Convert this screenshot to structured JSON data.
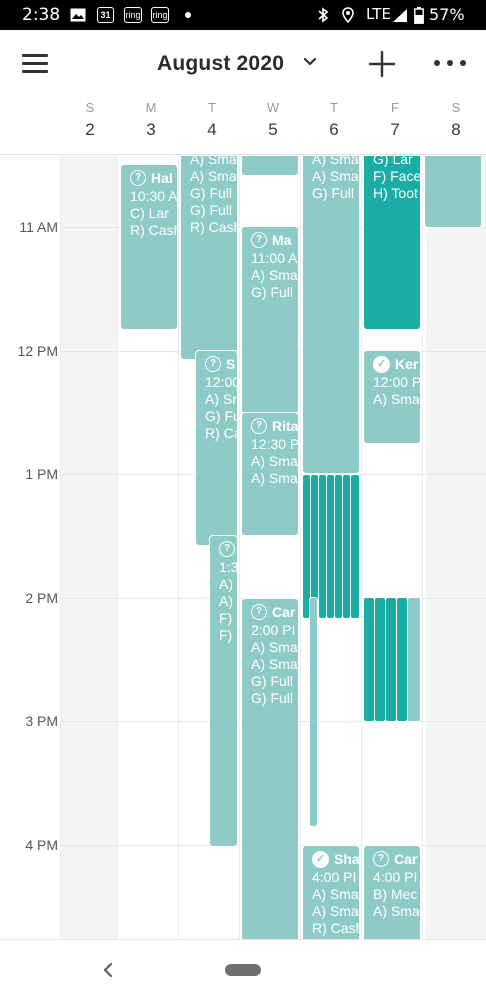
{
  "status_bar": {
    "time": "2:38",
    "calendar_badge": "31",
    "ring_label_1": "ring",
    "ring_label_2": "ring",
    "network": "LTE",
    "battery": "57%"
  },
  "header": {
    "month_title": "August 2020",
    "icons": [
      "menu-icon",
      "chevron-down-icon",
      "plus-icon",
      "more-icon"
    ]
  },
  "days": [
    {
      "letter": "S",
      "num": "2"
    },
    {
      "letter": "M",
      "num": "3"
    },
    {
      "letter": "T",
      "num": "4"
    },
    {
      "letter": "W",
      "num": "5"
    },
    {
      "letter": "T",
      "num": "6"
    },
    {
      "letter": "F",
      "num": "7"
    },
    {
      "letter": "S",
      "num": "8"
    }
  ],
  "time_labels": [
    "11 AM",
    "12 PM",
    "1 PM",
    "2 PM",
    "3 PM",
    "4 PM"
  ],
  "events": {
    "mon_hal": {
      "title": "Hal",
      "line1": "10:30 A",
      "line2": "C)  Lar",
      "line3": "R) Cash"
    },
    "tue_top": {
      "line0": "A) Sma",
      "line1": "A) Sma",
      "line2": "G) Full",
      "line3": "G) Full",
      "line4": "R) Cash"
    },
    "tue_s": {
      "title": "S",
      "line1": "12:00",
      "line2": "A) Sr",
      "line3": "G) Fu",
      "line4": "R) Ca"
    },
    "tue_late": {
      "line1": "1:3",
      "line2": "A)",
      "line3": "A)",
      "line4": "F)",
      "line5": "F)"
    },
    "wed_ma": {
      "title": "Ma",
      "line1": "11:00 A",
      "line2": "A) Sma",
      "line3": "G) Full"
    },
    "wed_rita": {
      "title": "Rita",
      "line1": "12:30 P",
      "line2": "A) Sma",
      "line3": "A) Sma"
    },
    "wed_car": {
      "title": "Car",
      "line1": "2:00 PI",
      "line2": "A) Sma",
      "line3": "A) Sma",
      "line4": "G) Full",
      "line5": "G) Full"
    },
    "thu_top": {
      "line0": "A) Sma",
      "line1": "A) Sma",
      "line2": "G) Full"
    },
    "thu_sha": {
      "title": "Sha",
      "line1": "4:00 PI",
      "line2": "A) Sma",
      "line3": "A) Sma",
      "line4": "R) Cash"
    },
    "fri_top": {
      "line0": "G) Lar",
      "line1": "F) Face",
      "line2": "H) Toot"
    },
    "fri_ker": {
      "title": "Ker",
      "line1": "12:00 P",
      "line2": "A) Sma"
    },
    "fri_car": {
      "title": "Car",
      "line1": "4:00 PI",
      "line2": "B)  Mec",
      "line3": "A) Sma"
    }
  }
}
